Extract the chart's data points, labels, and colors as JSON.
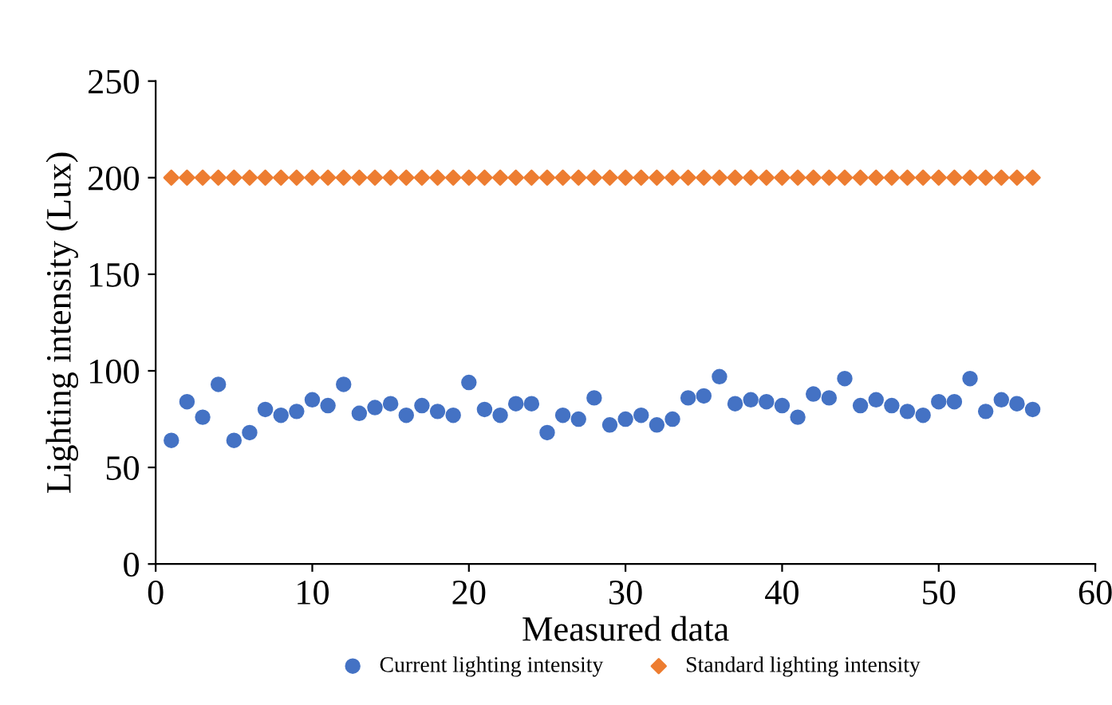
{
  "chart_data": {
    "type": "scatter",
    "xlabel": "Measured data",
    "ylabel": "Lighting intensity (Lux)",
    "x": [
      1,
      2,
      3,
      4,
      5,
      6,
      7,
      8,
      9,
      10,
      11,
      12,
      13,
      14,
      15,
      16,
      17,
      18,
      19,
      20,
      21,
      22,
      23,
      24,
      25,
      26,
      27,
      28,
      29,
      30,
      31,
      32,
      33,
      34,
      35,
      36,
      37,
      38,
      39,
      40,
      41,
      42,
      43,
      44,
      45,
      46,
      47,
      48,
      49,
      50,
      51,
      52,
      53,
      54,
      55,
      56
    ],
    "series": [
      {
        "name": "Current lighting intensity",
        "color": "#4472c4",
        "marker": "circle",
        "values": [
          64,
          84,
          76,
          93,
          64,
          68,
          80,
          77,
          79,
          85,
          82,
          93,
          78,
          81,
          83,
          77,
          82,
          79,
          77,
          94,
          80,
          77,
          83,
          83,
          68,
          77,
          75,
          86,
          72,
          75,
          77,
          72,
          75,
          86,
          87,
          97,
          83,
          85,
          84,
          82,
          76,
          88,
          86,
          96,
          82,
          85,
          82,
          79,
          77,
          84,
          84,
          96,
          79,
          85,
          83,
          80
        ]
      },
      {
        "name": "Standard lighting intensity",
        "color": "#ed7d31",
        "marker": "diamond",
        "values": [
          200,
          200,
          200,
          200,
          200,
          200,
          200,
          200,
          200,
          200,
          200,
          200,
          200,
          200,
          200,
          200,
          200,
          200,
          200,
          200,
          200,
          200,
          200,
          200,
          200,
          200,
          200,
          200,
          200,
          200,
          200,
          200,
          200,
          200,
          200,
          200,
          200,
          200,
          200,
          200,
          200,
          200,
          200,
          200,
          200,
          200,
          200,
          200,
          200,
          200,
          200,
          200,
          200,
          200,
          200,
          200
        ]
      }
    ],
    "xlim": [
      0,
      60
    ],
    "xticks": [
      0,
      10,
      20,
      30,
      40,
      50,
      60
    ],
    "ylim": [
      0,
      250
    ],
    "yticks": [
      0,
      50,
      100,
      150,
      200,
      250
    ],
    "grid": false,
    "legend": "bottom"
  }
}
